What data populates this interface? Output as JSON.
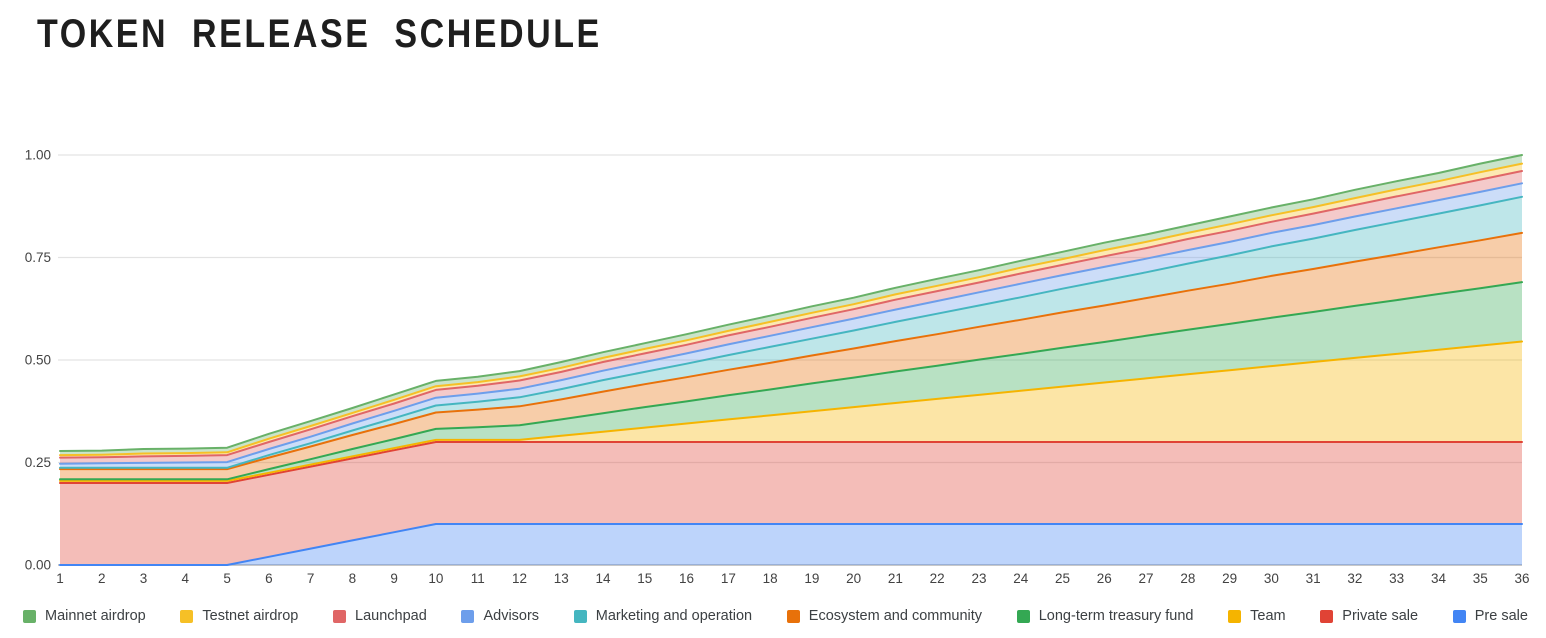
{
  "page": {
    "title": "TOKEN RELEASE SCHEDULE"
  },
  "chart_data": {
    "type": "area",
    "stacked": true,
    "title": "TOKEN RELEASE SCHEDULE",
    "xlabel": "",
    "ylabel": "",
    "x": [
      1,
      2,
      3,
      4,
      5,
      6,
      7,
      8,
      9,
      10,
      11,
      12,
      13,
      14,
      15,
      16,
      17,
      18,
      19,
      20,
      21,
      22,
      23,
      24,
      25,
      26,
      27,
      28,
      29,
      30,
      31,
      32,
      33,
      34,
      35,
      36
    ],
    "ylim": [
      0,
      1
    ],
    "y_ticks": [
      {
        "v": 0.0,
        "label": "0.00"
      },
      {
        "v": 0.25,
        "label": "0.25"
      },
      {
        "v": 0.5,
        "label": "0.50"
      },
      {
        "v": 0.75,
        "label": "0.75"
      },
      {
        "v": 1.0,
        "label": "1.00"
      }
    ],
    "grid": "horizontal",
    "legend_position": "bottom",
    "stacking_note": "series listed in legend order (top of stack first); the last series is at the bottom of the stack; values are cumulative unlocked fraction of total supply per month",
    "series": [
      {
        "name": "Mainnet airdrop",
        "color": "#68b168",
        "values": [
          0.01,
          0.01,
          0.011,
          0.011,
          0.011,
          0.012,
          0.012,
          0.012,
          0.013,
          0.013,
          0.013,
          0.013,
          0.014,
          0.014,
          0.014,
          0.015,
          0.015,
          0.015,
          0.016,
          0.016,
          0.016,
          0.017,
          0.017,
          0.017,
          0.018,
          0.018,
          0.018,
          0.018,
          0.019,
          0.019,
          0.019,
          0.02,
          0.02,
          0.02,
          0.021,
          0.021
        ]
      },
      {
        "name": "Testnet airdrop",
        "color": "#f6c026",
        "values": [
          0.006,
          0.006,
          0.007,
          0.007,
          0.007,
          0.008,
          0.008,
          0.008,
          0.009,
          0.009,
          0.009,
          0.01,
          0.01,
          0.01,
          0.011,
          0.011,
          0.011,
          0.012,
          0.012,
          0.012,
          0.013,
          0.013,
          0.013,
          0.014,
          0.014,
          0.015,
          0.015,
          0.015,
          0.016,
          0.016,
          0.016,
          0.017,
          0.017,
          0.017,
          0.018,
          0.018
        ]
      },
      {
        "name": "Launchpad",
        "color": "#e06666",
        "values": [
          0.015,
          0.015,
          0.016,
          0.016,
          0.017,
          0.017,
          0.018,
          0.018,
          0.018,
          0.019,
          0.019,
          0.02,
          0.02,
          0.021,
          0.021,
          0.021,
          0.022,
          0.022,
          0.023,
          0.023,
          0.024,
          0.024,
          0.024,
          0.025,
          0.025,
          0.026,
          0.026,
          0.027,
          0.027,
          0.027,
          0.028,
          0.028,
          0.029,
          0.029,
          0.03,
          0.03
        ]
      },
      {
        "name": "Advisors",
        "color": "#6d9eeb",
        "values": [
          0.01,
          0.011,
          0.012,
          0.013,
          0.014,
          0.015,
          0.016,
          0.017,
          0.018,
          0.019,
          0.02,
          0.021,
          0.022,
          0.023,
          0.024,
          0.025,
          0.026,
          0.027,
          0.028,
          0.029,
          0.03,
          0.031,
          0.032,
          0.033,
          0.033,
          0.033,
          0.033,
          0.033,
          0.033,
          0.033,
          0.033,
          0.033,
          0.033,
          0.033,
          0.033,
          0.033
        ]
      },
      {
        "name": "Marketing and operation",
        "color": "#45b6c0",
        "values": [
          0.003,
          0.003,
          0.003,
          0.003,
          0.003,
          0.006,
          0.008,
          0.011,
          0.014,
          0.017,
          0.019,
          0.022,
          0.025,
          0.028,
          0.03,
          0.033,
          0.036,
          0.039,
          0.041,
          0.044,
          0.047,
          0.05,
          0.052,
          0.055,
          0.058,
          0.061,
          0.063,
          0.066,
          0.069,
          0.072,
          0.074,
          0.077,
          0.08,
          0.082,
          0.085,
          0.088
        ]
      },
      {
        "name": "Ecosystem and community",
        "color": "#e8710a",
        "values": [
          0.025,
          0.025,
          0.025,
          0.025,
          0.025,
          0.028,
          0.031,
          0.034,
          0.037,
          0.04,
          0.043,
          0.046,
          0.049,
          0.053,
          0.056,
          0.059,
          0.062,
          0.065,
          0.068,
          0.071,
          0.074,
          0.077,
          0.08,
          0.083,
          0.086,
          0.089,
          0.092,
          0.095,
          0.098,
          0.102,
          0.105,
          0.108,
          0.111,
          0.114,
          0.117,
          0.12
        ]
      },
      {
        "name": "Long-term treasury fund",
        "color": "#34a853",
        "values": [
          0.004,
          0.004,
          0.004,
          0.004,
          0.004,
          0.009,
          0.013,
          0.018,
          0.022,
          0.027,
          0.031,
          0.036,
          0.04,
          0.045,
          0.05,
          0.054,
          0.059,
          0.063,
          0.068,
          0.072,
          0.077,
          0.081,
          0.086,
          0.09,
          0.095,
          0.099,
          0.104,
          0.109,
          0.113,
          0.118,
          0.122,
          0.127,
          0.131,
          0.136,
          0.14,
          0.145
        ]
      },
      {
        "name": "Team",
        "color": "#f5b400",
        "values": [
          0.005,
          0.005,
          0.005,
          0.005,
          0.005,
          0.005,
          0.005,
          0.005,
          0.005,
          0.005,
          0.005,
          0.005,
          0.015,
          0.025,
          0.035,
          0.045,
          0.055,
          0.065,
          0.075,
          0.085,
          0.095,
          0.105,
          0.115,
          0.125,
          0.135,
          0.145,
          0.155,
          0.165,
          0.175,
          0.185,
          0.195,
          0.205,
          0.215,
          0.225,
          0.235,
          0.245
        ]
      },
      {
        "name": "Private sale",
        "color": "#e04335",
        "values": [
          0.2,
          0.2,
          0.2,
          0.2,
          0.2,
          0.2,
          0.2,
          0.2,
          0.2,
          0.2,
          0.2,
          0.2,
          0.2,
          0.2,
          0.2,
          0.2,
          0.2,
          0.2,
          0.2,
          0.2,
          0.2,
          0.2,
          0.2,
          0.2,
          0.2,
          0.2,
          0.2,
          0.2,
          0.2,
          0.2,
          0.2,
          0.2,
          0.2,
          0.2,
          0.2,
          0.2
        ]
      },
      {
        "name": "Pre sale",
        "color": "#4285f4",
        "values": [
          0.0,
          0.0,
          0.0,
          0.0,
          0.0,
          0.02,
          0.04,
          0.06,
          0.08,
          0.1,
          0.1,
          0.1,
          0.1,
          0.1,
          0.1,
          0.1,
          0.1,
          0.1,
          0.1,
          0.1,
          0.1,
          0.1,
          0.1,
          0.1,
          0.1,
          0.1,
          0.1,
          0.1,
          0.1,
          0.1,
          0.1,
          0.1,
          0.1,
          0.1,
          0.1,
          0.1
        ]
      }
    ]
  },
  "style_colors": {
    "grid_line": "#e3e3e3",
    "axis_line": "#b5b5b5",
    "tick_text": "#424242",
    "legend_text": "#3c4043",
    "title_text": "#1e1e1e",
    "fill_opacity": 0.35
  }
}
